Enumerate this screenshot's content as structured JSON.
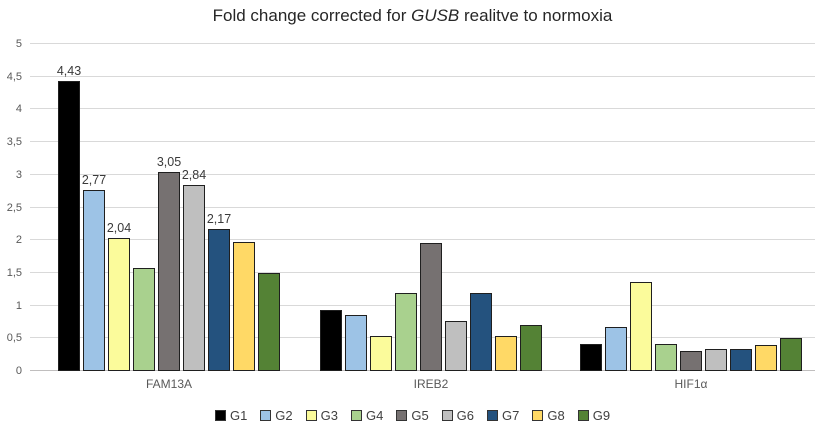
{
  "chart_data": {
    "type": "bar",
    "title": "Fold change corrected for GUSB realitve to normoxia",
    "title_parts": {
      "prefix": "Fold change corrected for ",
      "italic": "GUSB",
      "suffix": " realitve to normoxia"
    },
    "categories": [
      "FAM13A",
      "IREB2",
      "HIF1α"
    ],
    "series": [
      {
        "name": "G1",
        "color": "#000000",
        "values": [
          4.43,
          0.93,
          0.42
        ],
        "labels": [
          "4,43",
          "",
          ""
        ]
      },
      {
        "name": "G2",
        "color": "#9DC3E6",
        "values": [
          2.77,
          0.85,
          0.67
        ],
        "labels": [
          "2,77",
          "",
          ""
        ]
      },
      {
        "name": "G3",
        "color": "#FBFB9B",
        "values": [
          2.04,
          0.53,
          1.36
        ],
        "labels": [
          "2,04",
          "",
          ""
        ]
      },
      {
        "name": "G4",
        "color": "#A9D18E",
        "values": [
          1.57,
          1.2,
          0.41
        ],
        "labels": [
          "",
          "",
          ""
        ]
      },
      {
        "name": "G5",
        "color": "#767171",
        "values": [
          3.05,
          1.96,
          0.3
        ],
        "labels": [
          "3,05",
          "",
          ""
        ]
      },
      {
        "name": "G6",
        "color": "#BFBFBF",
        "values": [
          2.84,
          0.77,
          0.34
        ],
        "labels": [
          "2,84",
          "",
          ""
        ]
      },
      {
        "name": "G7",
        "color": "#24527E",
        "values": [
          2.17,
          1.2,
          0.34
        ],
        "labels": [
          "2,17",
          "",
          ""
        ]
      },
      {
        "name": "G8",
        "color": "#FFD966",
        "values": [
          1.98,
          0.53,
          0.4
        ],
        "labels": [
          "",
          "",
          ""
        ]
      },
      {
        "name": "G9",
        "color": "#548235",
        "values": [
          1.5,
          0.7,
          0.51
        ],
        "labels": [
          "",
          "",
          ""
        ]
      }
    ],
    "y_axis": {
      "min": 0,
      "max": 5,
      "step": 0.5,
      "tick_labels": [
        "0",
        "0,5",
        "1",
        "1,5",
        "2",
        "2,5",
        "3",
        "3,5",
        "4",
        "4,5",
        "5"
      ]
    },
    "legend": [
      "G1",
      "G2",
      "G3",
      "G4",
      "G5",
      "G6",
      "G7",
      "G8",
      "G9"
    ],
    "legend_position": "bottom",
    "grid": true
  }
}
